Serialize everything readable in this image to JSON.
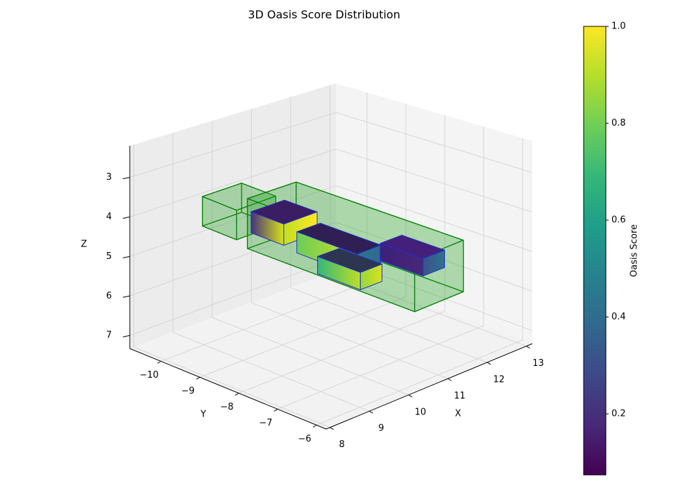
{
  "chart_data": {
    "type": "box3d",
    "title": "3D Oasis Score Distribution",
    "xlabel": "X",
    "ylabel": "Y",
    "zlabel": "Z",
    "xlim": [
      7.9,
      13.15
    ],
    "ylim": [
      -10.8,
      -5.75
    ],
    "zlim": [
      7.33,
      2.2
    ],
    "xticks": [
      8,
      9,
      10,
      11,
      12,
      13
    ],
    "yticks": [
      {
        "value": -10,
        "label": "−10"
      },
      {
        "value": -9,
        "label": "−9"
      },
      {
        "value": -8,
        "label": "−8"
      },
      {
        "value": -7,
        "label": "−7"
      },
      {
        "value": -6,
        "label": "−6"
      }
    ],
    "zticks": [
      3,
      4,
      5,
      6,
      7
    ],
    "grid": true,
    "boxes": [
      {
        "x": [
          8.5,
          9.5
        ],
        "y": [
          -9.54,
          -8.66
        ],
        "z": [
          3.18,
          3.93
        ],
        "edgecolor": "#008000",
        "facecolor": "#22a022",
        "alpha": 0.42
      },
      {
        "x": [
          10.5,
          11.74
        ],
        "y": [
          -10.4,
          -6.1
        ],
        "z": [
          4.25,
          5.56
        ],
        "edgecolor": "#008000",
        "facecolor": "#22a022",
        "alpha": 0.42
      },
      {
        "x": [
          10,
          10.85
        ],
        "y": [
          -9.8,
          -8.96
        ],
        "z": [
          4.19,
          4.74
        ],
        "edgecolor": "#1f2fc8",
        "faces": {
          "xmin": [
            "#46327e",
            "#d8e219"
          ],
          "ymax": [
            "#c2df23",
            "#fde725"
          ],
          "top": "#3a1d62"
        }
      },
      {
        "x": [
          10.5,
          11.1
        ],
        "y": [
          -9.13,
          -7.58
        ],
        "z": [
          4.64,
          5.19
        ],
        "edgecolor": "#1f2fc8",
        "faces": {
          "xmin": [
            "#6ccd5a",
            "#d0e11c"
          ],
          "ymax": [
            "#2a788e",
            "#31688e"
          ],
          "top": "#2f1f55"
        }
      },
      {
        "x": [
          11,
          11.55
        ],
        "y": [
          -9.1,
          -8.0
        ],
        "z": [
          5.46,
          5.91
        ],
        "edgecolor": "#1f2fc8",
        "faces": {
          "xmin": [
            "#35b779",
            "#bddf26"
          ],
          "ymax": [
            "#95d840",
            "#d8e219"
          ],
          "top": "#2e3550"
        }
      },
      {
        "x": [
          12,
          12.55
        ],
        "y": [
          -8.5,
          -7.4
        ],
        "z": [
          5.28,
          5.73
        ],
        "edgecolor": "#1f2fc8",
        "faces": {
          "xmin": [
            "#3e1f7a",
            "#482878"
          ],
          "ymax": [
            "#3b528b",
            "#2c728e"
          ],
          "top": "#44207a"
        }
      }
    ],
    "colorbar": {
      "label": "Oasis Score",
      "cmap": "viridis",
      "lim": [
        0.074,
        1.0
      ],
      "ticks": [
        0.2,
        0.4,
        0.6,
        0.8,
        {
          "value": 1,
          "label": "1.0"
        }
      ]
    }
  }
}
